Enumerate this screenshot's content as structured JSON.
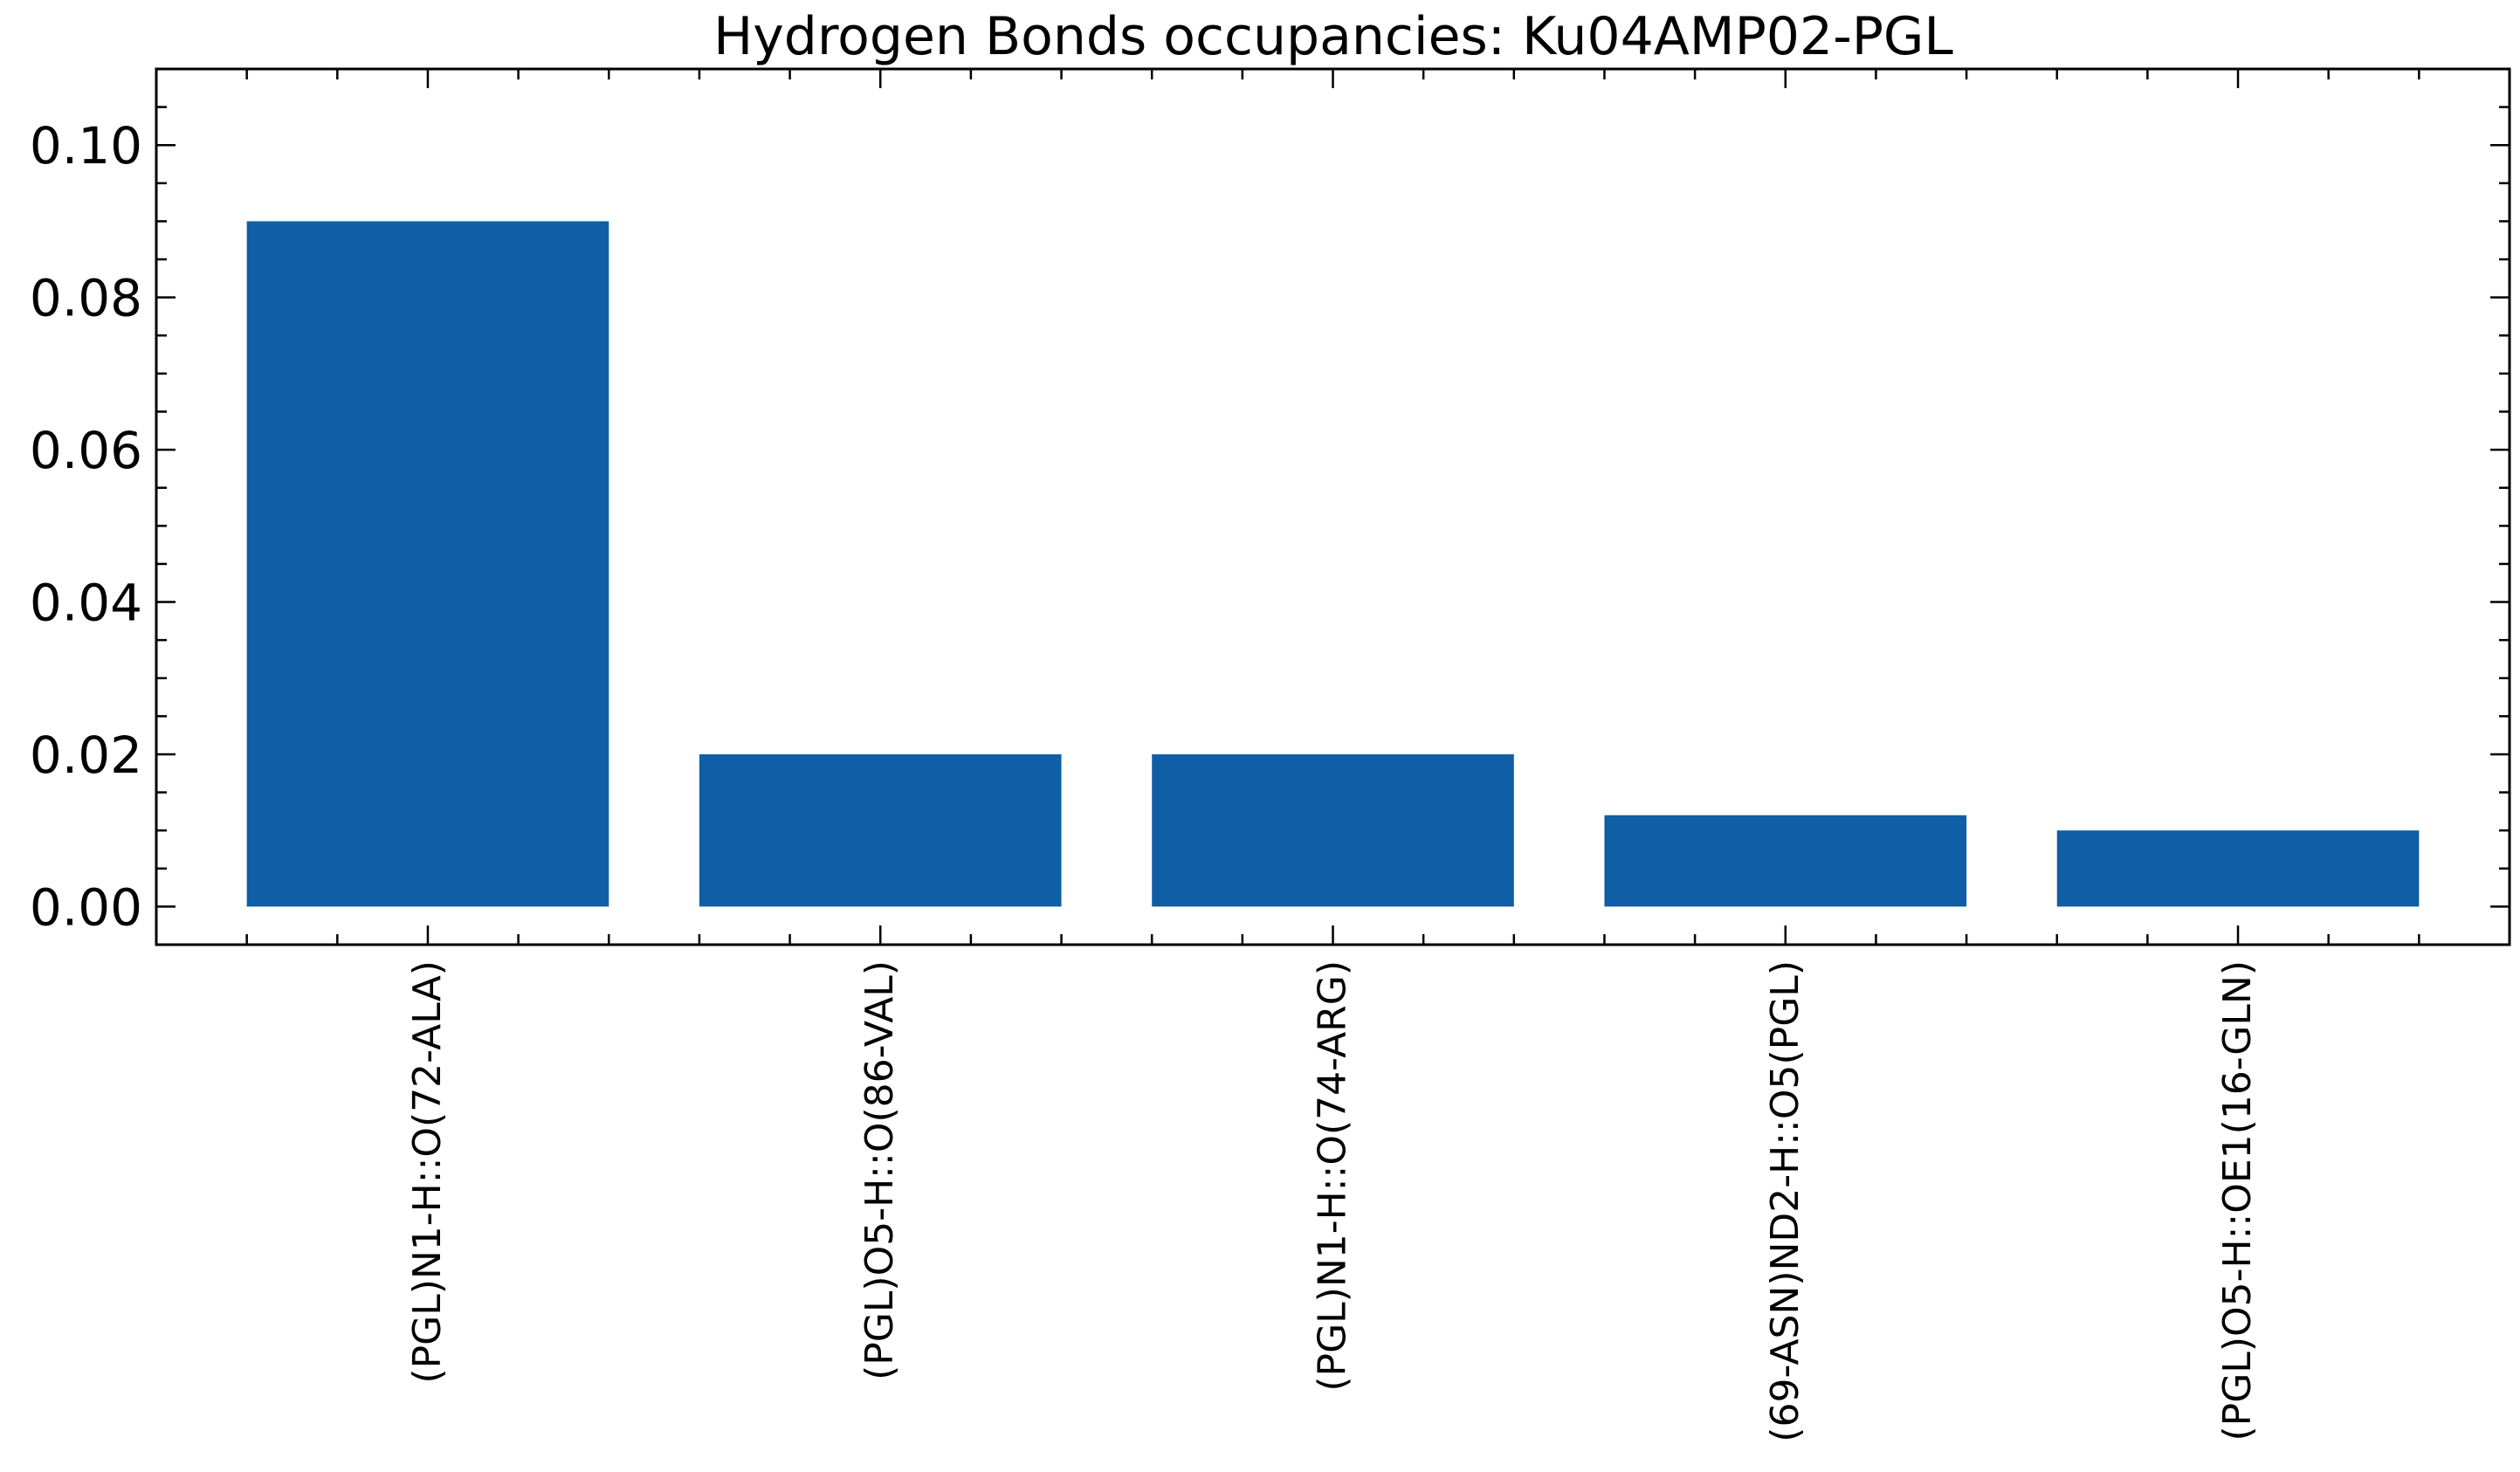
{
  "chart_data": {
    "type": "bar",
    "title": "Hydrogen Bonds occupancies: Ku04AMP02-PGL",
    "xlabel": "",
    "ylabel": "",
    "categories": [
      "(PGL)N1-H::O(72-ALA)",
      "(PGL)O5-H::O(86-VAL)",
      "(PGL)N1-H::O(74-ARG)",
      "(69-ASN)ND2-H::O5(PGL)",
      "(PGL)O5-H::OE1(16-GLN)"
    ],
    "values": [
      0.09,
      0.02,
      0.02,
      0.012,
      0.01
    ],
    "ylim": [
      -0.005,
      0.11
    ],
    "yticks": [
      "0.00",
      "0.02",
      "0.04",
      "0.06",
      "0.08",
      "0.10"
    ],
    "bar_color": "#0f5ea6",
    "grid": false,
    "legend": "none"
  }
}
